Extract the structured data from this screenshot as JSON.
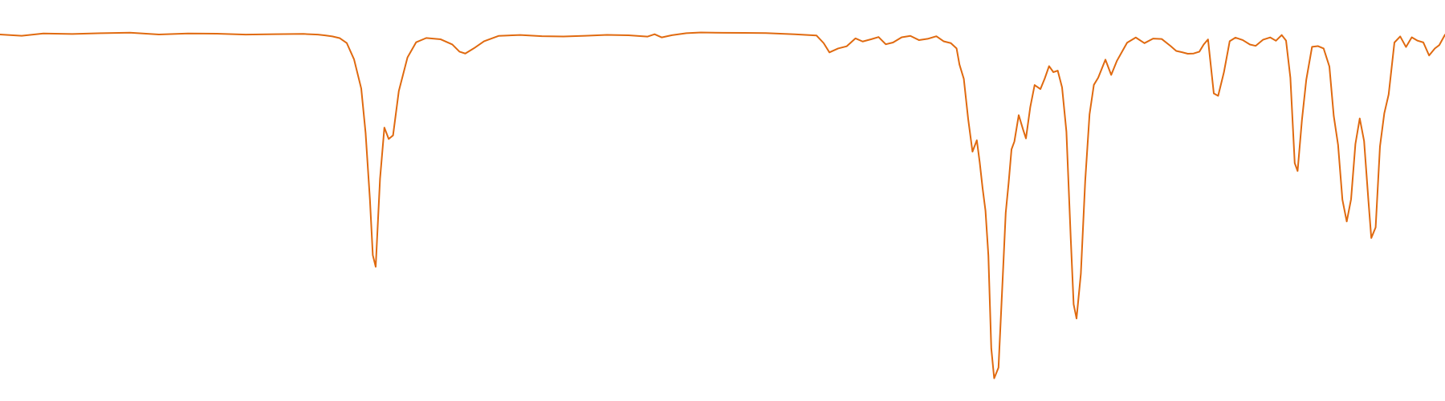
{
  "chart_data": {
    "type": "line",
    "title": "",
    "xlabel": "",
    "ylabel": "",
    "grid": false,
    "legend": "none",
    "xlim": [
      0,
      100
    ],
    "ylim": [
      0,
      100
    ],
    "series": [
      {
        "color": "#e06a10",
        "points": [
          [
            0.0,
            95.0
          ],
          [
            1.5,
            94.5
          ],
          [
            3.0,
            95.0
          ],
          [
            5.0,
            94.8
          ],
          [
            7.0,
            95.0
          ],
          [
            9.0,
            95.2
          ],
          [
            11.0,
            94.8
          ],
          [
            13.0,
            95.2
          ],
          [
            15.0,
            95.3
          ],
          [
            17.0,
            95.2
          ],
          [
            19.0,
            95.4
          ],
          [
            21.0,
            95.5
          ],
          [
            22.0,
            95.3
          ],
          [
            22.5,
            95.0
          ],
          [
            23.0,
            94.6
          ],
          [
            23.5,
            94.0
          ],
          [
            24.0,
            92.5
          ],
          [
            24.5,
            88.0
          ],
          [
            25.0,
            80.0
          ],
          [
            25.3,
            68.0
          ],
          [
            25.6,
            50.0
          ],
          [
            25.8,
            35.0
          ],
          [
            26.0,
            32.0
          ],
          [
            26.3,
            56.0
          ],
          [
            26.6,
            70.0
          ],
          [
            26.9,
            67.0
          ],
          [
            27.2,
            68.0
          ],
          [
            27.6,
            80.0
          ],
          [
            28.2,
            89.0
          ],
          [
            28.8,
            93.0
          ],
          [
            29.5,
            94.0
          ],
          [
            30.5,
            93.5
          ],
          [
            31.3,
            92.0
          ],
          [
            31.8,
            90.0
          ],
          [
            32.2,
            89.5
          ],
          [
            32.8,
            91.0
          ],
          [
            33.5,
            93.0
          ],
          [
            34.5,
            94.6
          ],
          [
            36.0,
            95.0
          ],
          [
            37.5,
            94.8
          ],
          [
            39.0,
            94.8
          ],
          [
            40.5,
            95.0
          ],
          [
            42.0,
            95.2
          ],
          [
            43.5,
            95.0
          ],
          [
            44.8,
            94.5
          ],
          [
            45.3,
            95.0
          ],
          [
            45.8,
            94.0
          ],
          [
            46.5,
            94.5
          ],
          [
            47.5,
            95.0
          ],
          [
            48.5,
            95.2
          ],
          [
            50.0,
            95.2
          ],
          [
            51.5,
            95.3
          ],
          [
            53.0,
            95.4
          ],
          [
            55.0,
            95.2
          ],
          [
            56.5,
            95.0
          ],
          [
            57.0,
            93.0
          ],
          [
            57.4,
            90.5
          ],
          [
            58.0,
            91.5
          ],
          [
            58.6,
            92.0
          ],
          [
            59.2,
            94.0
          ],
          [
            59.7,
            93.0
          ],
          [
            60.3,
            93.5
          ],
          [
            60.8,
            94.0
          ],
          [
            61.3,
            92.0
          ],
          [
            61.8,
            92.5
          ],
          [
            62.4,
            94.0
          ],
          [
            63.0,
            94.5
          ],
          [
            63.6,
            93.5
          ],
          [
            64.2,
            94.0
          ],
          [
            64.8,
            94.8
          ],
          [
            65.3,
            93.5
          ],
          [
            65.8,
            93.0
          ],
          [
            66.2,
            91.5
          ],
          [
            66.4,
            87.0
          ],
          [
            66.7,
            83.0
          ],
          [
            67.0,
            72.0
          ],
          [
            67.3,
            63.0
          ],
          [
            67.6,
            66.0
          ],
          [
            67.8,
            60.0
          ],
          [
            68.0,
            53.0
          ],
          [
            68.2,
            47.0
          ],
          [
            68.4,
            35.0
          ],
          [
            68.6,
            10.0
          ],
          [
            68.8,
            2.0
          ],
          [
            69.1,
            5.0
          ],
          [
            69.4,
            30.0
          ],
          [
            69.6,
            47.0
          ],
          [
            69.8,
            55.0
          ],
          [
            70.0,
            64.0
          ],
          [
            70.2,
            66.0
          ],
          [
            70.5,
            73.0
          ],
          [
            70.8,
            69.0
          ],
          [
            71.0,
            66.5
          ],
          [
            71.3,
            75.0
          ],
          [
            71.6,
            81.0
          ],
          [
            72.0,
            80.0
          ],
          [
            72.3,
            83.0
          ],
          [
            72.6,
            86.5
          ],
          [
            72.9,
            85.0
          ],
          [
            73.2,
            85.5
          ],
          [
            73.5,
            81.0
          ],
          [
            73.8,
            69.0
          ],
          [
            74.1,
            40.0
          ],
          [
            74.3,
            22.0
          ],
          [
            74.5,
            18.0
          ],
          [
            74.8,
            30.0
          ],
          [
            75.1,
            55.0
          ],
          [
            75.4,
            73.0
          ],
          [
            75.7,
            81.0
          ],
          [
            76.0,
            83.0
          ],
          [
            76.5,
            88.0
          ],
          [
            76.9,
            84.0
          ],
          [
            77.3,
            88.0
          ],
          [
            78.0,
            93.0
          ],
          [
            78.6,
            94.5
          ],
          [
            79.2,
            93.0
          ],
          [
            79.8,
            94.2
          ],
          [
            80.4,
            94.0
          ],
          [
            81.0,
            92.0
          ],
          [
            81.4,
            90.5
          ],
          [
            81.8,
            90.0
          ],
          [
            82.2,
            89.5
          ],
          [
            82.6,
            89.5
          ],
          [
            83.0,
            90.0
          ],
          [
            83.3,
            92.0
          ],
          [
            83.6,
            93.5
          ],
          [
            84.0,
            79.0
          ],
          [
            84.3,
            78.5
          ],
          [
            84.7,
            85.0
          ],
          [
            85.1,
            93.5
          ],
          [
            85.5,
            94.5
          ],
          [
            86.0,
            93.8
          ],
          [
            86.5,
            92.5
          ],
          [
            86.9,
            92.0
          ],
          [
            87.4,
            93.5
          ],
          [
            87.9,
            94.0
          ],
          [
            88.3,
            93.0
          ],
          [
            88.7,
            94.5
          ],
          [
            89.0,
            93.0
          ],
          [
            89.3,
            83.0
          ],
          [
            89.6,
            60.0
          ],
          [
            89.8,
            58.0
          ],
          [
            90.1,
            72.0
          ],
          [
            90.4,
            83.0
          ],
          [
            90.8,
            92.0
          ],
          [
            91.2,
            92.2
          ],
          [
            91.6,
            91.5
          ],
          [
            92.0,
            86.5
          ],
          [
            92.3,
            73.0
          ],
          [
            92.6,
            65.0
          ],
          [
            92.9,
            50.0
          ],
          [
            93.2,
            44.0
          ],
          [
            93.5,
            50.0
          ],
          [
            93.8,
            65.0
          ],
          [
            94.1,
            72.0
          ],
          [
            94.4,
            66.0
          ],
          [
            94.7,
            50.0
          ],
          [
            94.9,
            40.0
          ],
          [
            95.2,
            43.0
          ],
          [
            95.5,
            65.0
          ],
          [
            95.8,
            74.0
          ],
          [
            96.1,
            79.0
          ],
          [
            96.5,
            93.0
          ],
          [
            96.9,
            94.5
          ],
          [
            97.3,
            91.5
          ],
          [
            97.7,
            94.0
          ],
          [
            98.1,
            93.0
          ],
          [
            98.5,
            92.5
          ],
          [
            98.9,
            89.0
          ],
          [
            99.3,
            91.0
          ],
          [
            99.6,
            92.0
          ],
          [
            100.0,
            95.0
          ]
        ]
      }
    ]
  }
}
